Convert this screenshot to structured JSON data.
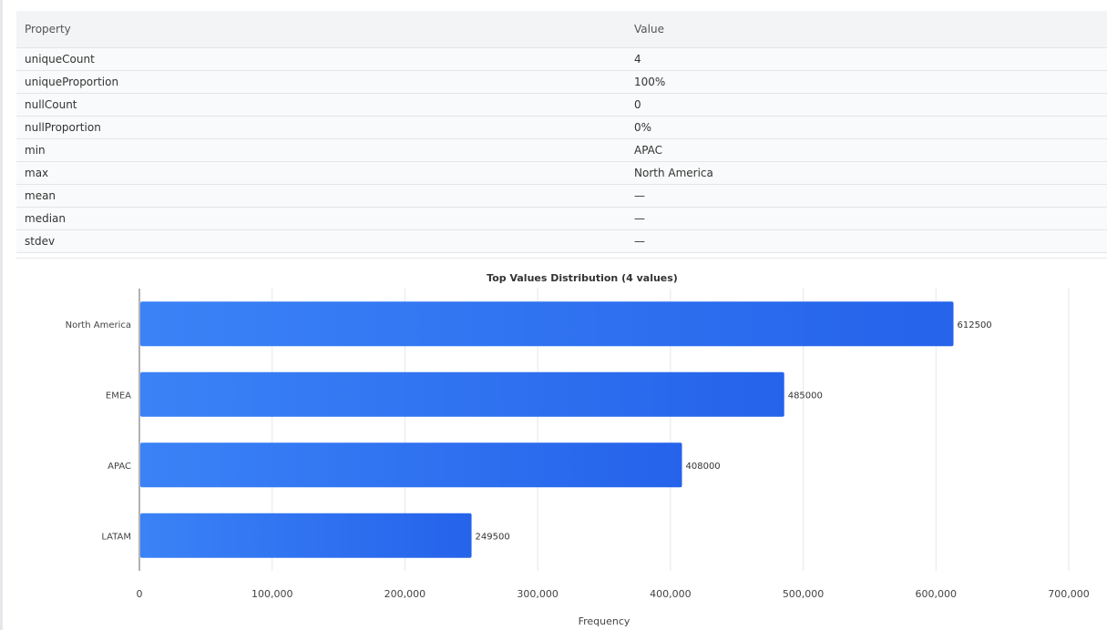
{
  "table": {
    "headers": [
      "Property",
      "Value"
    ],
    "rows": [
      [
        "uniqueCount",
        "4"
      ],
      [
        "uniqueProportion",
        "100%"
      ],
      [
        "nullCount",
        "0"
      ],
      [
        "nullProportion",
        "0%"
      ],
      [
        "min",
        "APAC"
      ],
      [
        "max",
        "North America"
      ],
      [
        "mean",
        "—"
      ],
      [
        "median",
        "—"
      ],
      [
        "stdev",
        "—"
      ]
    ]
  },
  "chart_data": {
    "type": "bar",
    "orientation": "horizontal",
    "title": "Top Values Distribution (4 values)",
    "xlabel": "Frequency",
    "ylabel": "",
    "categories": [
      "North America",
      "EMEA",
      "APAC",
      "LATAM"
    ],
    "values": [
      612500,
      485000,
      408000,
      249500
    ],
    "xlim": [
      0,
      700000
    ],
    "xticks": [
      "0",
      "100,000",
      "200,000",
      "300,000",
      "400,000",
      "500,000",
      "600,000",
      "700,000"
    ],
    "grid": "vertical",
    "bar_color_start": "#3b82f6",
    "bar_color_end": "#2563eb"
  }
}
